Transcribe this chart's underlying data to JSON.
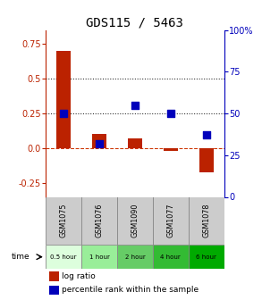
{
  "title": "GDS115 / 5463",
  "samples": [
    "GSM1075",
    "GSM1076",
    "GSM1090",
    "GSM1077",
    "GSM1078"
  ],
  "time_labels": [
    "0.5 hour",
    "1 hour",
    "2 hour",
    "4 hour",
    "6 hour"
  ],
  "log_ratios": [
    0.7,
    0.1,
    0.07,
    -0.02,
    -0.175
  ],
  "percentile_ranks": [
    50,
    32,
    55,
    50,
    37
  ],
  "bar_color": "#bb2200",
  "dot_color": "#0000bb",
  "ylim_left": [
    -0.35,
    0.85
  ],
  "ylim_right": [
    0,
    100
  ],
  "yticks_left": [
    -0.25,
    0.0,
    0.25,
    0.5,
    0.75
  ],
  "yticks_right": [
    0,
    25,
    50,
    75,
    100
  ],
  "hlines_y": [
    0.0,
    0.25,
    0.5
  ],
  "hline_styles": [
    "--",
    ":",
    ":"
  ],
  "hline_colors": [
    "#cc3300",
    "#222222",
    "#222222"
  ],
  "background_color": "#ffffff",
  "title_fontsize": 10,
  "tick_fontsize": 7,
  "bar_width": 0.4,
  "time_colors": [
    "#ddfedd",
    "#99ee99",
    "#66cc66",
    "#33bb33",
    "#00aa00"
  ],
  "sample_bg": "#cccccc"
}
